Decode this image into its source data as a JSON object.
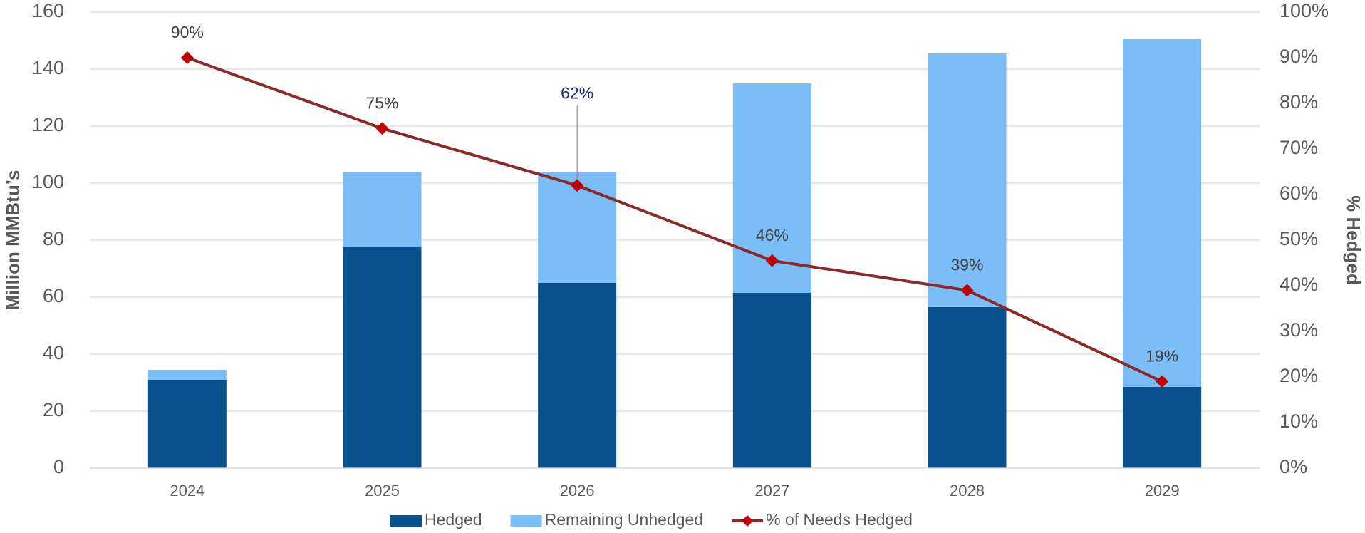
{
  "chart_data": {
    "type": "bar",
    "categories": [
      "2024",
      "2025",
      "2026",
      "2027",
      "2028",
      "2029"
    ],
    "series": [
      {
        "name": "Hedged",
        "color": "#0a5190",
        "type": "bar",
        "values": [
          31,
          77.5,
          65,
          61.5,
          56.5,
          28.5
        ]
      },
      {
        "name": "Remaining Unhedged",
        "color": "#7bbdf7",
        "type": "bar",
        "values": [
          3.5,
          26.5,
          39,
          73.5,
          89,
          122
        ]
      },
      {
        "name": "% of Needs Hedged",
        "color": "#8b2a2a",
        "marker_color": "#c00000",
        "type": "line",
        "axis": "y2",
        "values": [
          90,
          74.5,
          62,
          45.5,
          39,
          19
        ],
        "value_labels": [
          "90%",
          "75%",
          "62%",
          "46%",
          "39%",
          "19%"
        ],
        "value_label_colors": [
          "#404040",
          "#404040",
          "#1f2d6e",
          "#404040",
          "#404040",
          "#404040"
        ]
      }
    ],
    "stacked": true,
    "ylabel": "Million MMBtu’s",
    "y2label": "% Hedged",
    "ylim": [
      0,
      160
    ],
    "yticks": [
      0,
      20,
      40,
      60,
      80,
      100,
      120,
      140,
      160
    ],
    "y2lim": [
      0,
      100
    ],
    "y2ticks": [
      {
        "value": 0,
        "label": "0%"
      },
      {
        "value": 10,
        "label": "10%"
      },
      {
        "value": 20,
        "label": "20%"
      },
      {
        "value": 30,
        "label": "30%"
      },
      {
        "value": 40,
        "label": "40%"
      },
      {
        "value": 50,
        "label": "50%"
      },
      {
        "value": 60,
        "label": "60%"
      },
      {
        "value": 70,
        "label": "70%"
      },
      {
        "value": 80,
        "label": "80%"
      },
      {
        "value": 90,
        "label": "90%"
      },
      {
        "value": 100,
        "label": "100%"
      }
    ],
    "grid": true,
    "legend": "bottom"
  }
}
